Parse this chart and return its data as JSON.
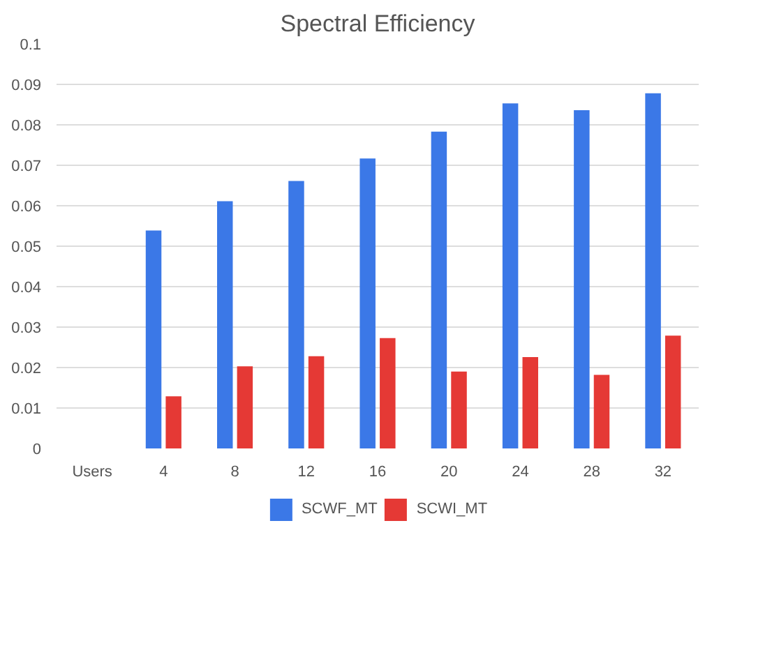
{
  "chart_data": {
    "type": "bar",
    "title": "Spectral Efficiency",
    "categories": [
      "Users",
      "4",
      "8",
      "12",
      "16",
      "20",
      "24",
      "28",
      "32"
    ],
    "series": [
      {
        "name": "SCWF_MT",
        "color": "#3b78e7",
        "values": [
          null,
          0.0539,
          0.0611,
          0.0661,
          0.0717,
          0.0783,
          0.0853,
          0.0836,
          0.0878
        ]
      },
      {
        "name": "SCWI_MT",
        "color": "#e53935",
        "values": [
          null,
          0.0129,
          0.0203,
          0.0228,
          0.0273,
          0.019,
          0.0226,
          0.0182,
          0.0279
        ]
      }
    ],
    "ylim": [
      0,
      0.1
    ],
    "yticks": [
      0,
      0.01,
      0.02,
      0.03,
      0.04,
      0.05,
      0.06,
      0.07,
      0.08,
      0.09,
      0.1
    ],
    "grid": "y",
    "legend": "bottom"
  }
}
